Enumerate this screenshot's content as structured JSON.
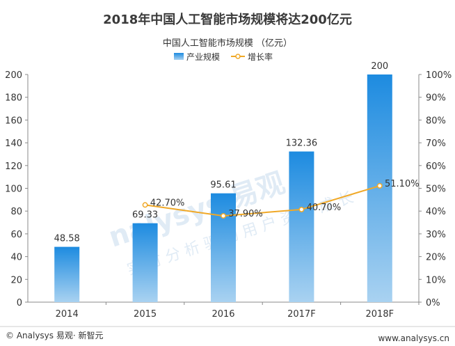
{
  "footer": {
    "left": "© Analysys 易观· 新智元",
    "right": "www.analysys.cn"
  },
  "watermark": {
    "brand": "nalysys 易观",
    "slogan": "实 时 分 析 驱 动 用 户 资 产 成 长"
  },
  "colors": {
    "bar_top": "#1d8be0",
    "bar_bottom": "#a9d2f1",
    "line": "#f0a826",
    "axis": "#888888"
  },
  "chart_data": {
    "type": "bar",
    "title": "2018年中国人工智能市场规模将达200亿元",
    "subtitle": "中国人工智能市场规模 （亿元）",
    "categories": [
      "2014",
      "2015",
      "2016",
      "2017F",
      "2018F"
    ],
    "series": [
      {
        "name": "产业规模",
        "type": "bar",
        "axis": "left",
        "values": [
          48.58,
          69.33,
          95.61,
          132.36,
          200
        ],
        "labels": [
          "48.58",
          "69.33",
          "95.61",
          "132.36",
          "200"
        ]
      },
      {
        "name": "增长率",
        "type": "line",
        "axis": "right",
        "values": [
          null,
          42.7,
          37.9,
          40.7,
          51.1
        ],
        "labels": [
          "",
          "42.70%",
          "37.90%",
          "40.70%",
          "51.10%"
        ]
      }
    ],
    "ylim_left": [
      0,
      200
    ],
    "yticks_left": [
      "0",
      "20",
      "40",
      "60",
      "80",
      "100",
      "120",
      "140",
      "160",
      "180",
      "200"
    ],
    "ylim_right": [
      0,
      100
    ],
    "yticks_right": [
      "0%",
      "10%",
      "20%",
      "30%",
      "40%",
      "50%",
      "60%",
      "70%",
      "80%",
      "90%",
      "100%"
    ],
    "legend_position": "top-center",
    "grid": false
  }
}
